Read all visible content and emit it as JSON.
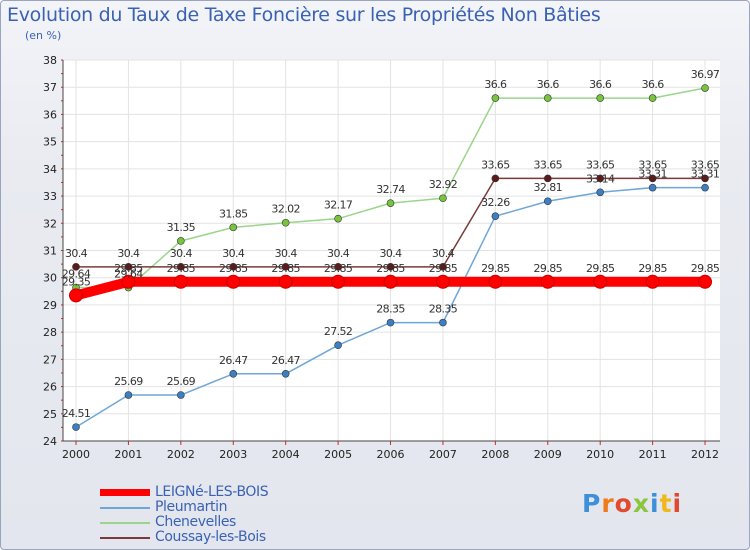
{
  "chart_data": {
    "type": "line",
    "title": "Evolution du Taux de Taxe Foncière sur les Propriétés Non Bâties",
    "ylabel": "(en %)",
    "xlabel": "",
    "categories": [
      "2000",
      "2001",
      "2002",
      "2003",
      "2004",
      "2005",
      "2006",
      "2007",
      "2008",
      "2009",
      "2010",
      "2011",
      "2012"
    ],
    "ylim": [
      24,
      38
    ],
    "yticks": [
      24,
      25,
      26,
      27,
      28,
      29,
      30,
      31,
      32,
      33,
      34,
      35,
      36,
      37,
      38
    ],
    "grid": true,
    "legend_position": "bottom-left",
    "series": [
      {
        "name": "LEIGNé-LES-BOIS",
        "color": "#ff0000",
        "values": [
          29.35,
          29.85,
          29.85,
          29.85,
          29.85,
          29.85,
          29.85,
          29.85,
          29.85,
          29.85,
          29.85,
          29.85,
          29.85
        ],
        "labels": [
          "29.35",
          "29.85",
          "29.85",
          "29.85",
          "29.85",
          "29.85",
          "29.85",
          "29.85",
          "29.85",
          "29.85",
          "29.85",
          "29.85",
          "29.85"
        ]
      },
      {
        "name": "Pleumartin",
        "color": "#6fa6d8",
        "marker": "#3c7fc2",
        "values": [
          24.51,
          25.69,
          25.69,
          26.47,
          26.47,
          27.52,
          28.35,
          28.35,
          32.26,
          32.81,
          33.14,
          33.31,
          33.31
        ],
        "labels": [
          "24.51",
          "25.69",
          "25.69",
          "26.47",
          "26.47",
          "27.52",
          "28.35",
          "28.35",
          "32.26",
          "32.81",
          "33.14",
          "33.31",
          "33.31"
        ]
      },
      {
        "name": "Chenevelles",
        "color": "#9ad58b",
        "marker": "#78c43c",
        "values": [
          29.64,
          29.64,
          31.35,
          31.85,
          32.02,
          32.17,
          32.74,
          32.92,
          36.6,
          36.6,
          36.6,
          36.6,
          36.97
        ],
        "labels": [
          "29.64",
          "29.64",
          "31.35",
          "31.85",
          "32.02",
          "32.17",
          "32.74",
          "32.92",
          "36.6",
          "36.6",
          "36.6",
          "36.6",
          "36.97"
        ]
      },
      {
        "name": "Coussay-les-Bois",
        "color": "#7a3a3a",
        "marker": "#5c1a1a",
        "values": [
          30.4,
          30.4,
          30.4,
          30.4,
          30.4,
          30.4,
          30.4,
          30.4,
          33.65,
          33.65,
          33.65,
          33.65,
          33.65
        ],
        "labels": [
          "30.4",
          "30.4",
          "30.4",
          "30.4",
          "30.4",
          "30.4",
          "30.4",
          "30.4",
          "33.65",
          "33.65",
          "33.65",
          "33.65",
          "33.65"
        ]
      }
    ]
  },
  "brand": {
    "letters": [
      "P",
      "r",
      "o",
      "x",
      "i",
      "t",
      "i"
    ]
  }
}
